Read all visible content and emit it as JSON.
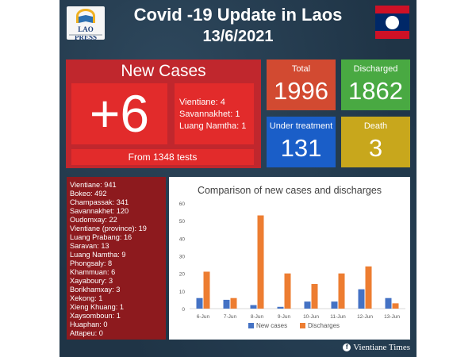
{
  "header": {
    "title": "Covid -19 Update in Laos",
    "date": "13/6/2021",
    "logo_text": "LAO PRESS"
  },
  "new_cases": {
    "label": "New Cases",
    "value": "+6",
    "regions": [
      "Vientiane: 4",
      "Savannakhet: 1",
      "Luang Namtha: 1"
    ],
    "tests": "From 1348 tests"
  },
  "stats": {
    "total_label": "Total",
    "total_value": "1996",
    "discharged_label": "Discharged",
    "discharged_value": "1862",
    "under_label": "Under treatment",
    "under_value": "131",
    "death_label": "Death",
    "death_value": "3"
  },
  "provinces": [
    "Vientiane: 941",
    "Bokeo: 492",
    "Champassak: 341",
    "Savannakhet: 120",
    "Oudomxay: 22",
    "Vientiane (province): 19",
    "Luang Prabang: 16",
    "Saravan: 13",
    "Luang Namtha: 9",
    "Phongsaly: 8",
    "Khammuan: 6",
    "Xayaboury: 3",
    "Borikhamxay: 3",
    "Xekong: 1",
    "Xieng Khuang: 1",
    "Xaysomboun: 1",
    "Huaphan: 0",
    "Attapeu: 0"
  ],
  "colors": {
    "background": "#1f3446",
    "new_cases_panel": "#c0272d",
    "total": "#d24a31",
    "discharged": "#49a942",
    "under_treatment": "#1a5ec8",
    "death": "#c8a71c",
    "series_new": "#4472c4",
    "series_discharges": "#ed7d31"
  },
  "footer": {
    "icon": "facebook-icon",
    "credit": "Vientiane Times"
  },
  "chart_data": {
    "type": "bar",
    "title": "Comparison of new cases and discharges",
    "categories": [
      "6-Jun",
      "7-Jun",
      "8-Jun",
      "9-Jun",
      "10-Jun",
      "11-Jun",
      "12-Jun",
      "13-Jun"
    ],
    "series": [
      {
        "name": "New cases",
        "values": [
          6,
          5,
          2,
          1,
          4,
          4,
          11,
          6
        ]
      },
      {
        "name": "Discharges",
        "values": [
          21,
          6,
          53,
          20,
          14,
          20,
          24,
          3
        ]
      }
    ],
    "ylim": [
      0,
      60
    ],
    "yticks": [
      0,
      10,
      20,
      30,
      40,
      50,
      60
    ],
    "grid": false,
    "legend": "bottom"
  }
}
